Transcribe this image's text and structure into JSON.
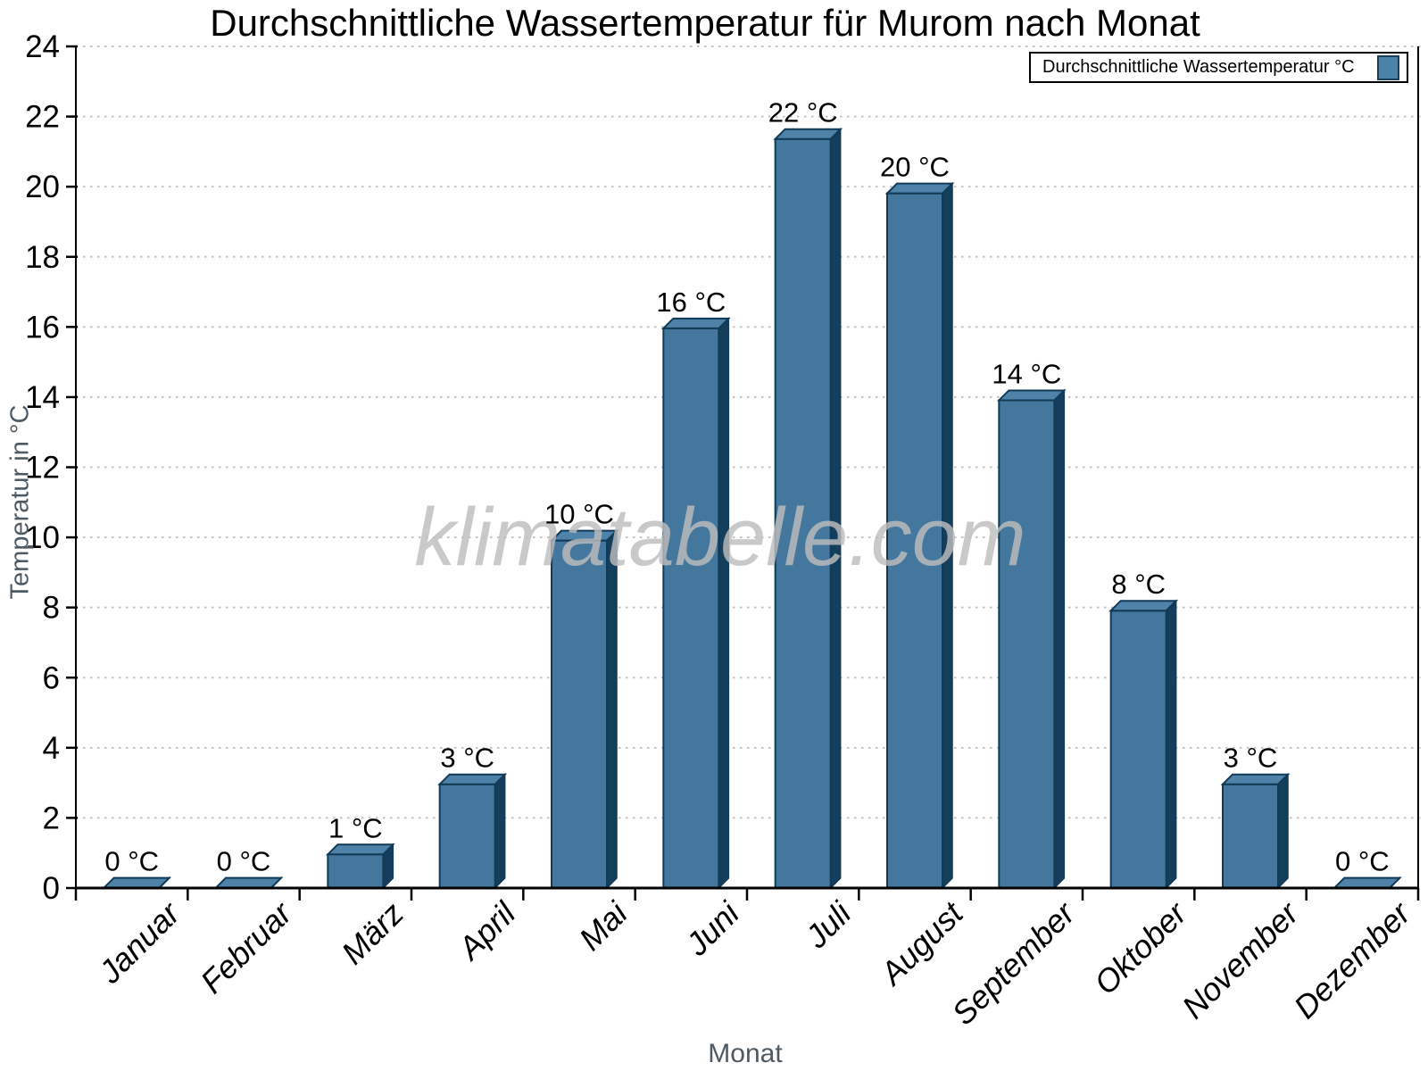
{
  "chart_data": {
    "type": "bar",
    "title": "Durchschnittliche Wassertemperatur für Murom nach Monat",
    "xlabel": "Monat",
    "ylabel": "Temperatur in °C",
    "categories": [
      "Januar",
      "Februar",
      "März",
      "April",
      "Mai",
      "Juni",
      "Juli",
      "August",
      "September",
      "Oktober",
      "November",
      "Dezember"
    ],
    "series": [
      {
        "name": "Durchschnittliche Wassertemperatur °C",
        "values": [
          0,
          0,
          1,
          3,
          10,
          16,
          22,
          20,
          14,
          8,
          3,
          0
        ]
      }
    ],
    "values_precise": [
      0.15,
      0.15,
      1.1,
      3.1,
      10.05,
      16.1,
      21.5,
      19.95,
      14.05,
      8.05,
      3.1,
      0.15
    ],
    "bar_labels": [
      "0 °C",
      "0 °C",
      "1 °C",
      "3 °C",
      "10 °C",
      "16 °C",
      "22 °C",
      "20 °C",
      "14 °C",
      "8 °C",
      "3 °C",
      "0 °C"
    ],
    "ylim": [
      0,
      24
    ],
    "yticks": [
      0,
      2,
      4,
      6,
      8,
      10,
      12,
      14,
      16,
      18,
      20,
      22,
      24
    ],
    "grid": "horizontal-dotted",
    "legend_position": "top-right",
    "watermark": "klimatabelle.com",
    "colors": {
      "bar_face": "#44779d",
      "bar_top": "#4e82a8",
      "bar_side": "#133f5d",
      "bar_outline": "#113a56",
      "grid": "#c2c2c2",
      "axis": "#000000",
      "axis_title": "#4d5a63",
      "tick_label": "#000000",
      "value_label": "#000000",
      "watermark": "#bdbdbd",
      "legend_swatch": "#4d82a8"
    }
  },
  "legend": {
    "label": "Durchschnittliche Wassertemperatur °C"
  }
}
